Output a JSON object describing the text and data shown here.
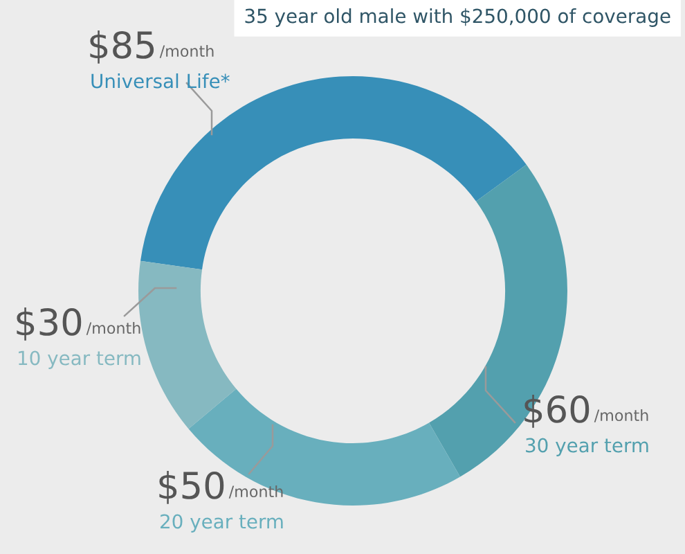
{
  "chart_data": {
    "type": "donut",
    "subtitle": "35 year old male with $250,000 of coverage",
    "categories": [
      "Universal Life*",
      "30 year term",
      "20 year term",
      "10 year term"
    ],
    "values": [
      85,
      60,
      50,
      30
    ],
    "colors": [
      "#378fb8",
      "#53a0ae",
      "#68afbd",
      "#86b9c1"
    ],
    "value_labels": [
      "$85 /month",
      "$60 /month",
      "$50 /month",
      "$30 /month"
    ],
    "legend": false
  }
}
